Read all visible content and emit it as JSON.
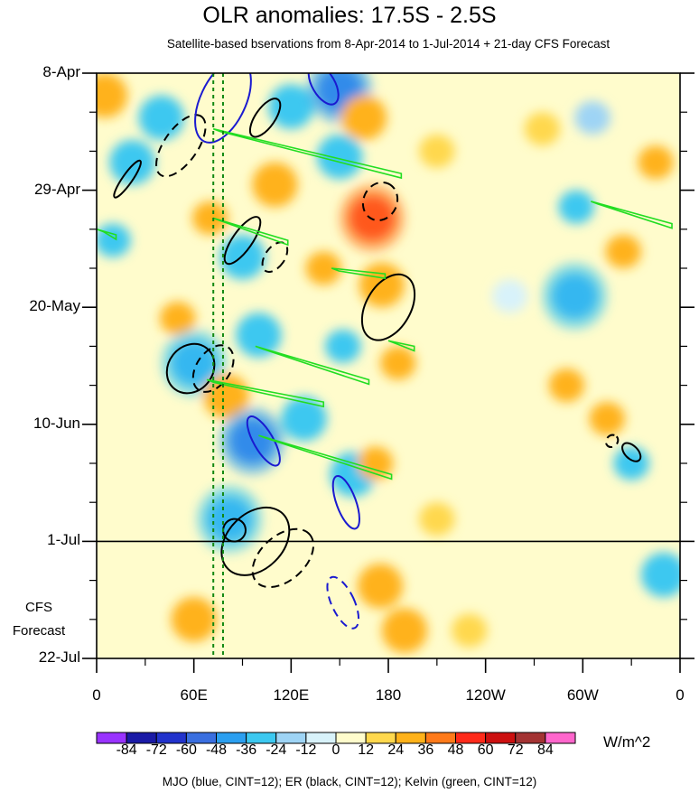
{
  "chart_data": {
    "type": "heatmap",
    "title": "OLR anomalies: 17.5S - 2.5S",
    "subtitle": "Satellite-based bservations from 8-Apr-2014 to 1-Jul-2014 + 21-day CFS Forecast",
    "x_ticks": [
      {
        "lon": 0,
        "label": "0"
      },
      {
        "lon": 60,
        "label": "60E"
      },
      {
        "lon": 120,
        "label": "120E"
      },
      {
        "lon": 180,
        "label": "180"
      },
      {
        "lon": 240,
        "label": "120W"
      },
      {
        "lon": 300,
        "label": "60W"
      },
      {
        "lon": 360,
        "label": "0"
      }
    ],
    "y_ticks": [
      {
        "day": 0,
        "label": "8-Apr"
      },
      {
        "day": 21,
        "label": "29-Apr"
      },
      {
        "day": 42,
        "label": "20-May"
      },
      {
        "day": 63,
        "label": "10-Jun"
      },
      {
        "day": 84,
        "label": "1-Jul"
      },
      {
        "day": 105,
        "label": "22-Jul"
      }
    ],
    "xlim": [
      0,
      360
    ],
    "ylim_days": [
      0,
      105
    ],
    "forecast_start_label": "1-Jul",
    "forecast_label": "CFS\nForecast",
    "colorbar": {
      "units": "W/m^2",
      "levels": [
        -84,
        -72,
        -60,
        -48,
        -36,
        -24,
        -12,
        0,
        12,
        24,
        36,
        48,
        60,
        72,
        84
      ],
      "labels": [
        "-84",
        "-72",
        "-60",
        "-48",
        "-36",
        "-24",
        "-12",
        "0",
        "12",
        "24",
        "36",
        "48",
        "60",
        "72",
        "84"
      ],
      "colors": [
        "#9933ff",
        "#1a1aa6",
        "#2233cc",
        "#3a6fe0",
        "#2b9ff0",
        "#3cc8f0",
        "#9ed4f5",
        "#d8f2fa",
        "#fffccc",
        "#ffd84d",
        "#ffb21a",
        "#ff7a1a",
        "#ff2a1a",
        "#cc1010",
        "#a33333",
        "#ff66cc"
      ]
    },
    "blobs": [
      {
        "lon": 5,
        "day": 4,
        "val": 30
      },
      {
        "lon": 10,
        "day": 30,
        "val": -26
      },
      {
        "lon": 22,
        "day": 16,
        "val": -30
      },
      {
        "lon": 40,
        "day": 8,
        "val": -36
      },
      {
        "lon": 50,
        "day": 44,
        "val": 28
      },
      {
        "lon": 60,
        "day": 52,
        "val": -48
      },
      {
        "lon": 70,
        "day": 26,
        "val": 26
      },
      {
        "lon": 80,
        "day": 58,
        "val": 30
      },
      {
        "lon": 82,
        "day": 80,
        "val": -40
      },
      {
        "lon": 90,
        "day": 33,
        "val": -36
      },
      {
        "lon": 100,
        "day": 47,
        "val": -30
      },
      {
        "lon": 96,
        "day": 66,
        "val": -50
      },
      {
        "lon": 110,
        "day": 20,
        "val": 30
      },
      {
        "lon": 120,
        "day": 6,
        "val": -30
      },
      {
        "lon": 128,
        "day": 62,
        "val": -36
      },
      {
        "lon": 140,
        "day": 35,
        "val": 28
      },
      {
        "lon": 150,
        "day": 3,
        "val": -60
      },
      {
        "lon": 150,
        "day": 15,
        "val": -36
      },
      {
        "lon": 152,
        "day": 49,
        "val": -28
      },
      {
        "lon": 158,
        "day": 72,
        "val": -36
      },
      {
        "lon": 165,
        "day": 8,
        "val": 32
      },
      {
        "lon": 170,
        "day": 26,
        "val": 48
      },
      {
        "lon": 176,
        "day": 38,
        "val": 34
      },
      {
        "lon": 172,
        "day": 70,
        "val": 28
      },
      {
        "lon": 175,
        "day": 92,
        "val": 34
      },
      {
        "lon": 186,
        "day": 52,
        "val": 26
      },
      {
        "lon": 190,
        "day": 100,
        "val": 30
      },
      {
        "lon": 210,
        "day": 14,
        "val": 18
      },
      {
        "lon": 210,
        "day": 80,
        "val": 14
      },
      {
        "lon": 255,
        "day": 40,
        "val": -8
      },
      {
        "lon": 275,
        "day": 10,
        "val": 14
      },
      {
        "lon": 290,
        "day": 56,
        "val": 26
      },
      {
        "lon": 295,
        "day": 40,
        "val": -40
      },
      {
        "lon": 296,
        "day": 24,
        "val": -26
      },
      {
        "lon": 306,
        "day": 8,
        "val": -24
      },
      {
        "lon": 315,
        "day": 62,
        "val": 28
      },
      {
        "lon": 325,
        "day": 32,
        "val": 26
      },
      {
        "lon": 330,
        "day": 70,
        "val": -28
      },
      {
        "lon": 350,
        "day": 90,
        "val": -30
      },
      {
        "lon": 345,
        "day": 16,
        "val": 24
      },
      {
        "lon": 60,
        "day": 98,
        "val": 34
      },
      {
        "lon": 230,
        "day": 100,
        "val": 16
      }
    ],
    "mjo_contours": [
      {
        "lon": 78,
        "day": 5,
        "dlon": 14,
        "dday": 8,
        "angle": 25
      },
      {
        "lon": 140,
        "day": 2,
        "dlon": 7,
        "dday": 4,
        "angle": -30
      },
      {
        "lon": 103,
        "day": 66,
        "dlon": 6,
        "dday": 5,
        "angle": -30
      },
      {
        "lon": 154,
        "day": 77,
        "dlon": 6,
        "dday": 5,
        "angle": -20
      },
      {
        "lon": 152,
        "day": 95,
        "dlon": 7,
        "dday": 5,
        "angle": -25,
        "dashed": true
      }
    ],
    "er_contours": [
      {
        "lon": 19,
        "day": 19,
        "dlon": 3,
        "dday": 4,
        "angle": 35
      },
      {
        "lon": 52,
        "day": 13,
        "dlon": 22,
        "dday": 3,
        "angle": -55,
        "dashed": true
      },
      {
        "lon": 104,
        "day": 8,
        "dlon": 6,
        "dday": 4,
        "angle": 35
      },
      {
        "lon": 90,
        "day": 30,
        "dlon": 6,
        "dday": 5,
        "angle": 35
      },
      {
        "lon": 110,
        "day": 33,
        "dlon": 6,
        "dday": 3,
        "angle": 35,
        "dashed": true
      },
      {
        "lon": 180,
        "day": 42,
        "dlon": 22,
        "dday": 4,
        "angle": -60
      },
      {
        "lon": 175,
        "day": 23,
        "dlon": 12,
        "dday": 3,
        "angle": -65,
        "dashed": true
      },
      {
        "lon": 58,
        "day": 53,
        "dlon": 16,
        "dday": 4,
        "angle": -52
      },
      {
        "lon": 72,
        "day": 53,
        "dlon": 16,
        "dday": 3,
        "angle": -55,
        "dashed": true
      },
      {
        "lon": 98,
        "day": 84,
        "dlon": 24,
        "dday": 5,
        "angle": -45
      },
      {
        "lon": 85,
        "day": 82,
        "dlon": 7,
        "dday": 2,
        "angle": -50
      },
      {
        "lon": 115,
        "day": 87,
        "dlon": 22,
        "dday": 4,
        "angle": -42,
        "dashed": true
      },
      {
        "lon": 330,
        "day": 68,
        "dlon": 4,
        "dday": 2,
        "angle": -45
      },
      {
        "lon": 318,
        "day": 66,
        "dlon": 4,
        "dday": 1,
        "angle": -45,
        "dashed": true
      }
    ],
    "kelvin_contours": [
      {
        "lon1": 72,
        "day1": 10,
        "lon2": 188,
        "day2": 18
      },
      {
        "lon1": 72,
        "day1": 26,
        "lon2": 118,
        "day2": 30
      },
      {
        "lon1": 145,
        "day1": 35,
        "lon2": 178,
        "day2": 36
      },
      {
        "lon1": 98,
        "day1": 49,
        "lon2": 168,
        "day2": 55
      },
      {
        "lon1": 68,
        "day1": 55,
        "lon2": 140,
        "day2": 59
      },
      {
        "lon1": 100,
        "day1": 65,
        "lon2": 182,
        "day2": 72
      },
      {
        "lon1": 305,
        "day1": 23,
        "lon2": 355,
        "day2": 27
      },
      {
        "lon1": 0,
        "day1": 28,
        "lon2": 12,
        "day2": 29
      },
      {
        "lon1": 180,
        "day1": 48,
        "lon2": 196,
        "day2": 49
      }
    ],
    "vlines_lon": [
      72,
      78
    ],
    "footnote": "MJO (blue, CINT=12); ER (black, CINT=12); Kelvin (green, CINT=12)"
  }
}
